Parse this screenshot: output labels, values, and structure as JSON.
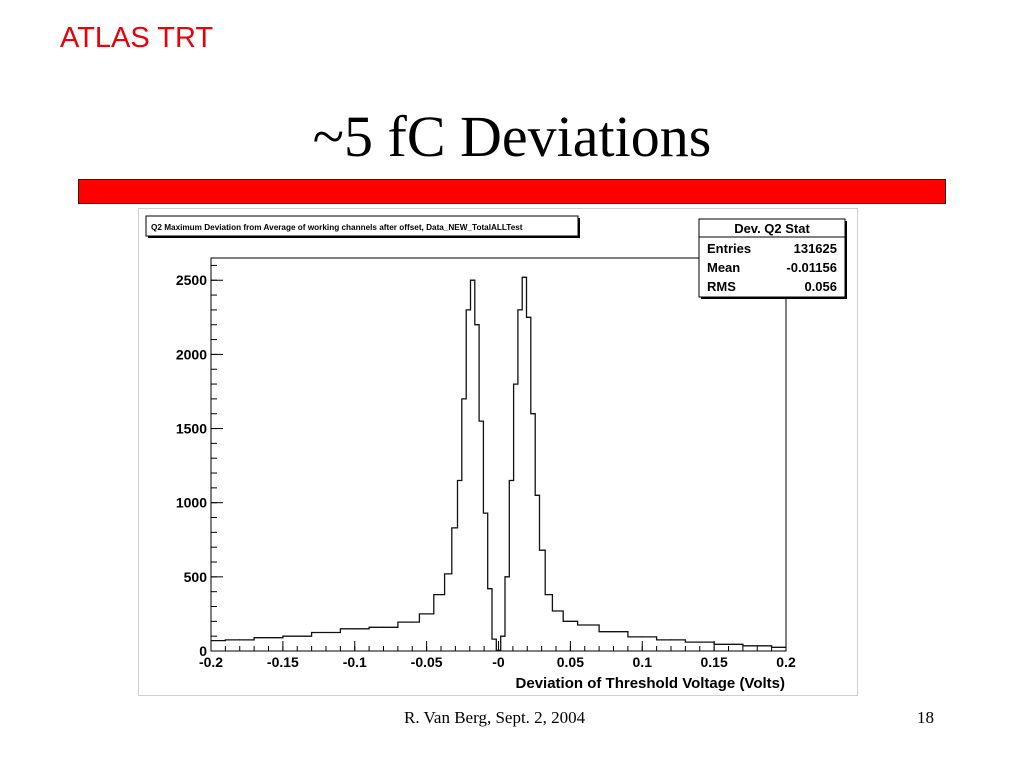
{
  "slide": {
    "header_label": "ATLAS TRT",
    "title": "~5 fC Deviations",
    "accent_color": "#ff0000",
    "footer_author": "R. Van Berg, Sept. 2, 2004",
    "page_number": "18"
  },
  "chart_data": {
    "type": "histogram",
    "title": "Q2 Maximum Deviation from Average of working channels after offset, Data_NEW_TotalALLTest",
    "xlabel": "Deviation of Threshold Voltage (Volts)",
    "ylabel": "",
    "xlim": [
      -0.2,
      0.2
    ],
    "ylim": [
      0,
      2650
    ],
    "xticks": [
      "-0.2",
      "-0.15",
      "-0.1",
      "-0.05",
      "-0",
      "0.05",
      "0.1",
      "0.15",
      "0.2"
    ],
    "yticks": [
      "0",
      "500",
      "1000",
      "1500",
      "2000",
      "2500"
    ],
    "stats": {
      "title": "Dev. Q2 Stat",
      "rows": [
        {
          "label": "Entries",
          "value": "131625"
        },
        {
          "label": "Mean",
          "value": "-0.01156"
        },
        {
          "label": "RMS",
          "value": "0.056"
        }
      ]
    },
    "series": [
      {
        "x": [
          -0.2,
          -0.18,
          -0.16,
          -0.14,
          -0.12,
          -0.1,
          -0.08,
          -0.06,
          -0.05,
          -0.04,
          -0.035,
          -0.03,
          -0.027,
          -0.024,
          -0.021,
          -0.018,
          -0.015,
          -0.012,
          -0.009,
          -0.006,
          -0.003,
          0.0,
          0.003,
          0.006,
          0.009,
          0.012,
          0.015,
          0.018,
          0.021,
          0.024,
          0.027,
          0.03,
          0.035,
          0.04,
          0.05,
          0.06,
          0.08,
          0.1,
          0.12,
          0.14,
          0.16,
          0.18,
          0.2
        ],
        "values": [
          70,
          75,
          90,
          100,
          125,
          150,
          160,
          195,
          250,
          380,
          520,
          830,
          1150,
          1700,
          2300,
          2500,
          2200,
          1550,
          930,
          420,
          80,
          5,
          100,
          500,
          1150,
          1800,
          2300,
          2520,
          2250,
          1600,
          1050,
          680,
          380,
          270,
          200,
          175,
          130,
          95,
          75,
          60,
          45,
          35,
          25
        ]
      }
    ]
  }
}
